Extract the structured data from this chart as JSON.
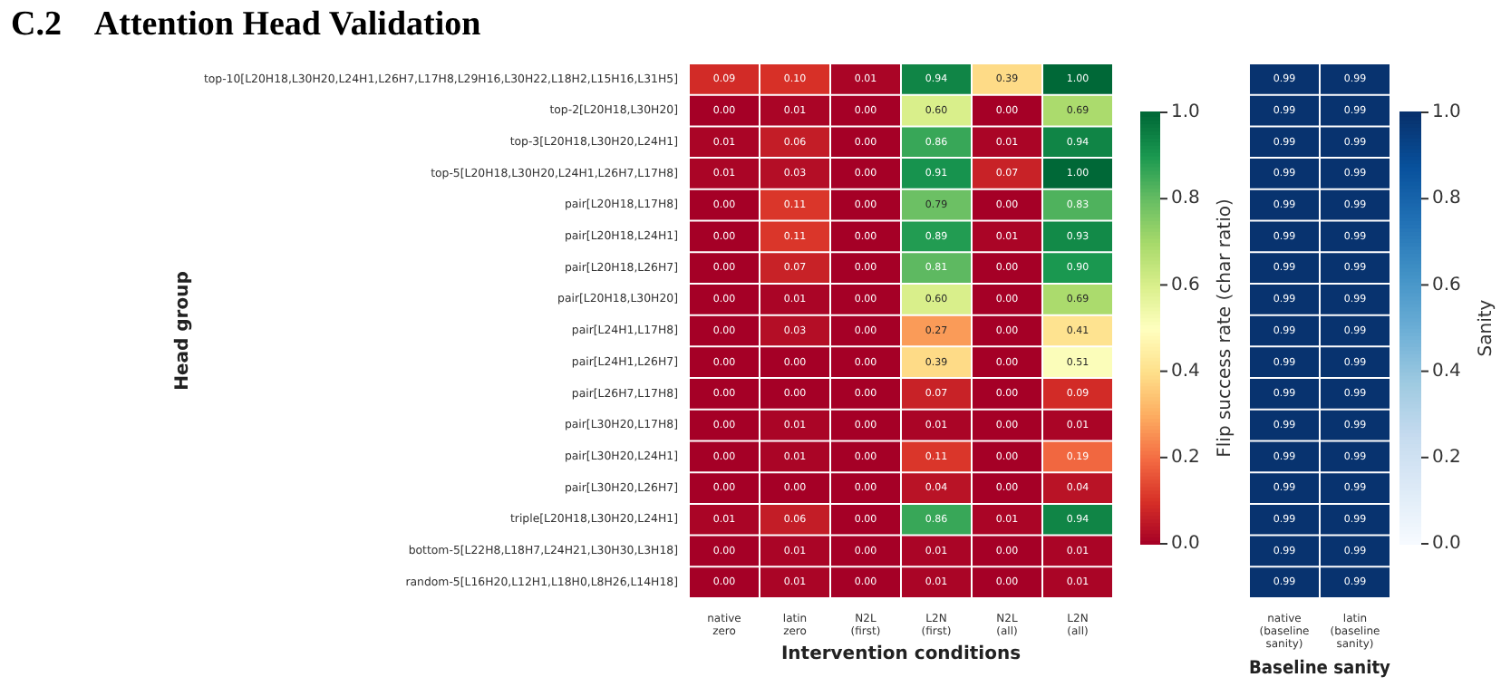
{
  "chart_data": [
    {
      "type": "heatmap",
      "title": "C.2    Attention Head Validation",
      "xlabel": "Intervention conditions",
      "ylabel": "Head group",
      "clabel": "Flip success rate (char ratio)",
      "categories": [
        "native zero",
        "latin zero",
        "N2L (first)",
        "L2N (first)",
        "N2L (all)",
        "L2N (all)"
      ],
      "y_categories": [
        "top-10[L20H18,L30H20,L24H1,L26H7,L17H8,L29H16,L30H22,L18H2,L15H16,L31H5]",
        "top-2[L20H18,L30H20]",
        "top-3[L20H18,L30H20,L24H1]",
        "top-5[L20H18,L30H20,L24H1,L26H7,L17H8]",
        "pair[L20H18,L17H8]",
        "pair[L20H18,L24H1]",
        "pair[L20H18,L26H7]",
        "pair[L20H18,L30H20]",
        "pair[L24H1,L17H8]",
        "pair[L24H1,L26H7]",
        "pair[L26H7,L17H8]",
        "pair[L30H20,L17H8]",
        "pair[L30H20,L24H1]",
        "pair[L30H20,L26H7]",
        "triple[L20H18,L30H20,L24H1]",
        "bottom-5[L22H8,L18H7,L24H21,L30H30,L3H18]",
        "random-5[L16H20,L12H1,L18H0,L8H26,L14H18]"
      ],
      "cells": [
        [
          0.09,
          0.1,
          0.01,
          0.94,
          0.39,
          1.0
        ],
        [
          0.0,
          0.01,
          0.0,
          0.6,
          0.0,
          0.69
        ],
        [
          0.01,
          0.06,
          0.0,
          0.86,
          0.01,
          0.94
        ],
        [
          0.01,
          0.03,
          0.0,
          0.91,
          0.07,
          1.0
        ],
        [
          0.0,
          0.11,
          0.0,
          0.79,
          0.0,
          0.83
        ],
        [
          0.0,
          0.11,
          0.0,
          0.89,
          0.01,
          0.93
        ],
        [
          0.0,
          0.07,
          0.0,
          0.81,
          0.0,
          0.9
        ],
        [
          0.0,
          0.01,
          0.0,
          0.6,
          0.0,
          0.69
        ],
        [
          0.0,
          0.03,
          0.0,
          0.27,
          0.0,
          0.41
        ],
        [
          0.0,
          0.0,
          0.0,
          0.39,
          0.0,
          0.51
        ],
        [
          0.0,
          0.0,
          0.0,
          0.07,
          0.0,
          0.09
        ],
        [
          0.0,
          0.01,
          0.0,
          0.01,
          0.0,
          0.01
        ],
        [
          0.0,
          0.01,
          0.0,
          0.11,
          0.0,
          0.19
        ],
        [
          0.0,
          0.0,
          0.0,
          0.04,
          0.0,
          0.04
        ],
        [
          0.01,
          0.06,
          0.0,
          0.86,
          0.01,
          0.94
        ],
        [
          0.0,
          0.01,
          0.0,
          0.01,
          0.0,
          0.01
        ],
        [
          0.0,
          0.01,
          0.0,
          0.01,
          0.0,
          0.01
        ]
      ],
      "cell_labels": [
        [
          "0.09",
          "0.10",
          "0.01",
          "0.94",
          "0.39",
          "1.00"
        ],
        [
          "0.00",
          "0.01",
          "0.00",
          "0.60",
          "0.00",
          "0.69"
        ],
        [
          "0.01",
          "0.06",
          "0.00",
          "0.86",
          "0.01",
          "0.94"
        ],
        [
          "0.01",
          "0.03",
          "0.00",
          "0.91",
          "0.07",
          "1.00"
        ],
        [
          "0.00",
          "0.11",
          "0.00",
          "0.79",
          "0.00",
          "0.83"
        ],
        [
          "0.00",
          "0.11",
          "0.00",
          "0.89",
          "0.01",
          "0.93"
        ],
        [
          "0.00",
          "0.07",
          "0.00",
          "0.81",
          "0.00",
          "0.90"
        ],
        [
          "0.00",
          "0.01",
          "0.00",
          "0.60",
          "0.00",
          "0.69"
        ],
        [
          "0.00",
          "0.03",
          "0.00",
          "0.27",
          "0.00",
          "0.41"
        ],
        [
          "0.00",
          "0.00",
          "0.00",
          "0.39",
          "0.00",
          "0.51"
        ],
        [
          "0.00",
          "0.00",
          "0.00",
          "0.07",
          "0.00",
          "0.09"
        ],
        [
          "0.00",
          "0.01",
          "0.00",
          "0.01",
          "0.00",
          "0.01"
        ],
        [
          "0.00",
          "0.01",
          "0.00",
          "0.11",
          "0.00",
          "0.19"
        ],
        [
          "0.00",
          "0.00",
          "0.00",
          "0.04",
          "0.00",
          "0.04"
        ],
        [
          "0.01",
          "0.06",
          "0.00",
          "0.86",
          "0.01",
          "0.94"
        ],
        [
          "0.00",
          "0.01",
          "0.00",
          "0.01",
          "0.00",
          "0.01"
        ],
        [
          "0.00",
          "0.01",
          "0.00",
          "0.01",
          "0.00",
          "0.01"
        ]
      ],
      "clim": [
        0,
        1
      ],
      "cticks": [
        {
          "value": 0,
          "label": "0.0"
        },
        {
          "value": 0.2,
          "label": "0.2"
        },
        {
          "value": 0.4,
          "label": "0.4"
        },
        {
          "value": 0.6,
          "label": "0.6"
        },
        {
          "value": 0.8,
          "label": "0.8"
        },
        {
          "value": 1,
          "label": "1.0"
        }
      ]
    },
    {
      "type": "heatmap",
      "xlabel": "Baseline sanity",
      "clabel": "Sanity",
      "tick_labels": "x",
      "data_labels": true,
      "categories": [
        "native (baseline sanity)",
        "latin (baseline sanity)"
      ],
      "y_categories": [
        null,
        null,
        null,
        null,
        null,
        null,
        null,
        null,
        null,
        null,
        null,
        null,
        null,
        null,
        null,
        null,
        null
      ],
      "cells": [
        [
          0.99,
          0.99
        ],
        [
          0.99,
          0.99
        ],
        [
          0.99,
          0.99
        ],
        [
          0.99,
          0.99
        ],
        [
          0.99,
          0.99
        ],
        [
          0.99,
          0.99
        ],
        [
          0.99,
          0.99
        ],
        [
          0.99,
          0.99
        ],
        [
          0.99,
          0.99
        ],
        [
          0.99,
          0.99
        ],
        [
          0.99,
          0.99
        ],
        [
          0.99,
          0.99
        ],
        [
          0.99,
          0.99
        ],
        [
          0.99,
          0.99
        ],
        [
          0.99,
          0.99
        ],
        [
          0.99,
          0.99
        ],
        [
          0.99,
          0.99
        ]
      ],
      "clim": [
        0,
        1
      ],
      "cticks": [
        {
          "value": 0,
          "label": "0.0"
        },
        {
          "value": 0.2,
          "label": "0.2"
        },
        {
          "value": 0.4,
          "label": "0.4"
        },
        {
          "value": 0.6,
          "label": "0.6"
        },
        {
          "value": 0.8,
          "label": "0.8"
        },
        {
          "value": 1,
          "label": "1.0"
        }
      ]
    }
  ]
}
